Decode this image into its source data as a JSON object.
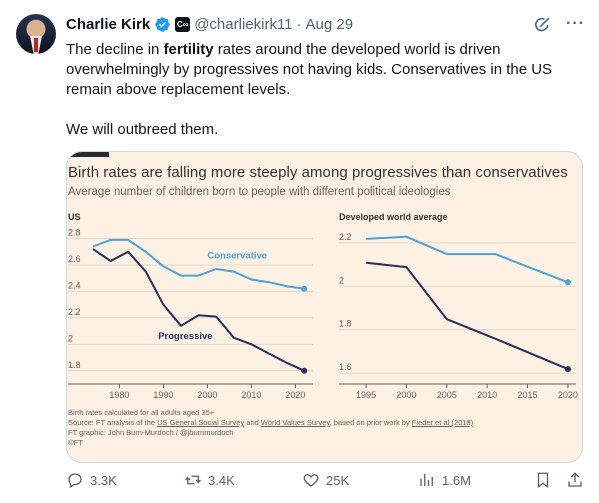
{
  "author": {
    "name": "Charlie Kirk",
    "handle": "@charliekirk11",
    "separator": "·",
    "date": "Aug 29",
    "verified_color": "#1d9bf0"
  },
  "icons": [
    "verified-badge-icon",
    "org-badge-icon",
    "grok-icon",
    "more-icon",
    "reply-icon",
    "retweet-icon",
    "like-icon",
    "views-icon",
    "bookmark-icon",
    "share-icon"
  ],
  "tweet": {
    "text_before": "The decline in ",
    "text_bold": "fertility",
    "text_after": " rates around the developed world is driven overwhelmingly by progressives not having kids. Conservatives in the US remain above replacement levels.",
    "text_para2": "We will outbreed them."
  },
  "media": {
    "footnote_1": "Birth rates calculated for all adults aged 35+",
    "source_prefix": "Source: FT analysis of the ",
    "source_link_1": "US General Social Survey",
    "source_and": " and ",
    "source_link_2": "World Values Survey",
    "source_mid": ", based on prior work by ",
    "source_link_3": "Fieder et al (2018)",
    "credit": "FT graphic: John Burn-Murdoch / @jburnmurdoch",
    "copyright": "©FT"
  },
  "chart_data": [
    {
      "type": "line",
      "title": "Birth rates are falling more steeply among progressives than conservatives",
      "subtitle": "Average number of children born to people with different political ideologies",
      "panel": "US",
      "ylim": [
        1.7,
        2.85
      ],
      "yticks": [
        "2.8",
        "2.6",
        "2.4",
        "2.2",
        "2",
        "1.8"
      ],
      "xlim": [
        1974,
        2024
      ],
      "xticks": [
        "1980",
        "1990",
        "2000",
        "2010",
        "2020"
      ],
      "series": [
        {
          "name": "Conservative",
          "color": "#4ba3d9",
          "points": [
            [
              1974,
              2.71
            ],
            [
              1978,
              2.76
            ],
            [
              1982,
              2.76
            ],
            [
              1986,
              2.67
            ],
            [
              1990,
              2.56
            ],
            [
              1994,
              2.49
            ],
            [
              1998,
              2.49
            ],
            [
              2002,
              2.54
            ],
            [
              2006,
              2.52
            ],
            [
              2010,
              2.46
            ],
            [
              2014,
              2.44
            ],
            [
              2018,
              2.41
            ],
            [
              2022,
              2.39
            ]
          ]
        },
        {
          "name": "Progressive",
          "color": "#262f5a",
          "points": [
            [
              1974,
              2.69
            ],
            [
              1978,
              2.6
            ],
            [
              1982,
              2.67
            ],
            [
              1986,
              2.52
            ],
            [
              1990,
              2.27
            ],
            [
              1994,
              2.11
            ],
            [
              1998,
              2.19
            ],
            [
              2002,
              2.18
            ],
            [
              2006,
              2.02
            ],
            [
              2010,
              1.97
            ],
            [
              2014,
              1.9
            ],
            [
              2018,
              1.83
            ],
            [
              2022,
              1.77
            ]
          ]
        }
      ]
    },
    {
      "type": "line",
      "panel": "Developed world average",
      "ylim": [
        1.55,
        2.25
      ],
      "yticks": [
        "2.2",
        "2",
        "1.8",
        "1.6"
      ],
      "xlim": [
        1994,
        2021
      ],
      "xticks": [
        "1995",
        "2000",
        "2005",
        "2010",
        "2015",
        "2020"
      ],
      "series": [
        {
          "name": "Conservative",
          "color": "#4ba3d9",
          "points": [
            [
              1995,
              2.2
            ],
            [
              2000,
              2.21
            ],
            [
              2005,
              2.13
            ],
            [
              2011,
              2.13
            ],
            [
              2020,
              2.0
            ]
          ]
        },
        {
          "name": "Progressive",
          "color": "#262f5a",
          "points": [
            [
              1995,
              2.09
            ],
            [
              2000,
              2.07
            ],
            [
              2005,
              1.83
            ],
            [
              2011,
              1.74
            ],
            [
              2020,
              1.6
            ]
          ]
        }
      ]
    }
  ],
  "actions": {
    "replies": "3.3K",
    "reposts": "3.4K",
    "likes": "25K",
    "views": "1.6M"
  }
}
